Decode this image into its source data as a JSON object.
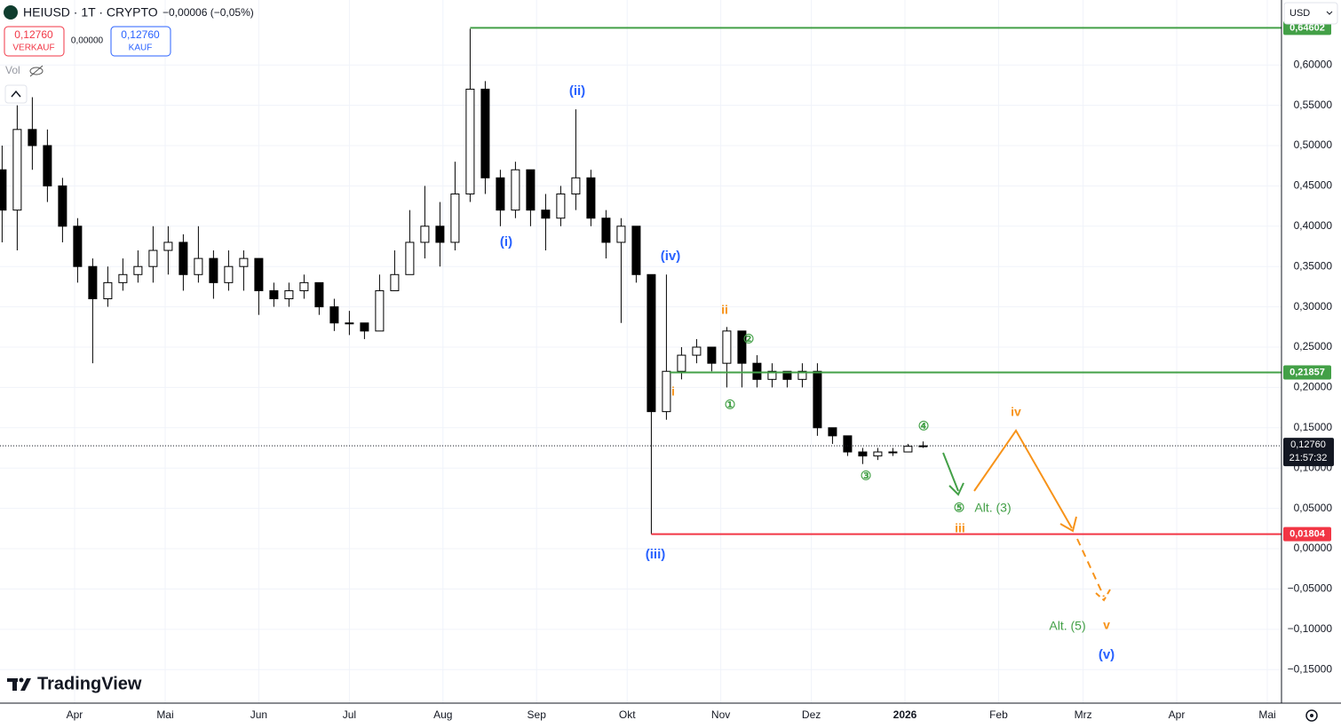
{
  "chart_data": {
    "type": "candlestick",
    "symbol": "HEIUSD · 1T · CRYPTO",
    "change": "−0,00006 (−0,05%)",
    "sell": {
      "price": "0,12760",
      "label": "VERKAUF"
    },
    "spread": "0,00000",
    "buy": {
      "price": "0,12760",
      "label": "KAUF"
    },
    "volume_label": "Vol",
    "currency": "USD",
    "brand": "TradingView",
    "xlim": [
      -24.7,
      399.7
    ],
    "ylim": [
      -0.1916,
      0.6806
    ],
    "xticks": [
      {
        "value": 0,
        "label": "Apr"
      },
      {
        "value": 30,
        "label": "Mai"
      },
      {
        "value": 61,
        "label": "Jun"
      },
      {
        "value": 91,
        "label": "Jul"
      },
      {
        "value": 122,
        "label": "Aug"
      },
      {
        "value": 153,
        "label": "Sep"
      },
      {
        "value": 183,
        "label": "Okt"
      },
      {
        "value": 214,
        "label": "Nov"
      },
      {
        "value": 244,
        "label": "Dez"
      },
      {
        "value": 275,
        "label": "2026"
      },
      {
        "value": 306,
        "label": "Feb"
      },
      {
        "value": 334,
        "label": "Mrz"
      },
      {
        "value": 365,
        "label": "Apr"
      },
      {
        "value": 395,
        "label": "Mai"
      }
    ],
    "yticks": [
      {
        "value": -0.15,
        "label": "−0,15000"
      },
      {
        "value": -0.1,
        "label": "−0,10000"
      },
      {
        "value": -0.05,
        "label": "−0,05000"
      },
      {
        "value": 0,
        "label": "0,00000"
      },
      {
        "value": 0.05,
        "label": "0,05000"
      },
      {
        "value": 0.1,
        "label": "0,10000"
      },
      {
        "value": 0.15,
        "label": "0,15000"
      },
      {
        "value": 0.2,
        "label": "0,20000"
      },
      {
        "value": 0.25,
        "label": "0,25000"
      },
      {
        "value": 0.3,
        "label": "0,30000"
      },
      {
        "value": 0.35,
        "label": "0,35000"
      },
      {
        "value": 0.4,
        "label": "0,40000"
      },
      {
        "value": 0.45,
        "label": "0,45000"
      },
      {
        "value": 0.5,
        "label": "0,50000"
      },
      {
        "value": 0.55,
        "label": "0,55000"
      },
      {
        "value": 0.6,
        "label": "0,60000"
      }
    ],
    "grid": true,
    "up_color": "#ffffff",
    "down_color": "#000000",
    "x": [
      -24,
      -19,
      -14,
      -9,
      -4,
      1,
      6,
      11,
      16,
      21,
      26,
      31,
      36,
      41,
      46,
      51,
      56,
      61,
      66,
      71,
      76,
      81,
      86,
      91,
      96,
      101,
      106,
      111,
      116,
      121,
      126,
      131,
      136,
      141,
      146,
      151,
      156,
      161,
      166,
      171,
      176,
      181,
      186,
      191,
      196,
      201,
      206,
      211,
      216,
      221,
      226,
      231,
      236,
      241,
      246,
      251,
      256,
      261,
      266,
      271,
      276,
      281
    ],
    "open": [
      0.47,
      0.42,
      0.52,
      0.5,
      0.45,
      0.4,
      0.35,
      0.31,
      0.33,
      0.34,
      0.35,
      0.37,
      0.38,
      0.34,
      0.36,
      0.33,
      0.35,
      0.36,
      0.32,
      0.31,
      0.32,
      0.33,
      0.3,
      0.28,
      0.28,
      0.27,
      0.32,
      0.34,
      0.38,
      0.4,
      0.38,
      0.44,
      0.57,
      0.46,
      0.42,
      0.47,
      0.42,
      0.41,
      0.44,
      0.46,
      0.41,
      0.38,
      0.4,
      0.34,
      0.17,
      0.22,
      0.24,
      0.25,
      0.23,
      0.27,
      0.23,
      0.21,
      0.22,
      0.21,
      0.22,
      0.15,
      0.14,
      0.12,
      0.115,
      0.12,
      0.12,
      0.127
    ],
    "high": [
      0.5,
      0.55,
      0.56,
      0.52,
      0.46,
      0.41,
      0.36,
      0.35,
      0.36,
      0.37,
      0.4,
      0.4,
      0.39,
      0.4,
      0.37,
      0.37,
      0.37,
      0.36,
      0.33,
      0.33,
      0.34,
      0.33,
      0.31,
      0.295,
      0.28,
      0.34,
      0.37,
      0.42,
      0.45,
      0.43,
      0.48,
      0.645,
      0.58,
      0.47,
      0.48,
      0.47,
      0.44,
      0.45,
      0.545,
      0.47,
      0.42,
      0.41,
      0.4,
      0.34,
      0.34,
      0.25,
      0.26,
      0.25,
      0.275,
      0.27,
      0.24,
      0.23,
      0.22,
      0.23,
      0.23,
      0.15,
      0.14,
      0.125,
      0.125,
      0.125,
      0.13,
      0.133
    ],
    "low": [
      0.38,
      0.37,
      0.47,
      0.43,
      0.38,
      0.33,
      0.23,
      0.3,
      0.32,
      0.33,
      0.33,
      0.34,
      0.32,
      0.33,
      0.31,
      0.32,
      0.32,
      0.29,
      0.3,
      0.3,
      0.31,
      0.29,
      0.27,
      0.265,
      0.26,
      0.27,
      0.32,
      0.34,
      0.36,
      0.35,
      0.37,
      0.43,
      0.44,
      0.4,
      0.41,
      0.4,
      0.37,
      0.4,
      0.42,
      0.4,
      0.36,
      0.28,
      0.33,
      0.018,
      0.16,
      0.21,
      0.23,
      0.22,
      0.2,
      0.2,
      0.2,
      0.2,
      0.2,
      0.2,
      0.14,
      0.13,
      0.115,
      0.105,
      0.11,
      0.115,
      0.12,
      0.125
    ],
    "close": [
      0.42,
      0.52,
      0.5,
      0.45,
      0.4,
      0.35,
      0.31,
      0.33,
      0.34,
      0.35,
      0.37,
      0.38,
      0.34,
      0.36,
      0.33,
      0.35,
      0.36,
      0.32,
      0.31,
      0.32,
      0.33,
      0.3,
      0.28,
      0.28,
      0.27,
      0.32,
      0.34,
      0.38,
      0.4,
      0.38,
      0.44,
      0.57,
      0.46,
      0.42,
      0.47,
      0.42,
      0.41,
      0.44,
      0.46,
      0.41,
      0.38,
      0.4,
      0.34,
      0.17,
      0.22,
      0.24,
      0.25,
      0.23,
      0.27,
      0.23,
      0.21,
      0.22,
      0.21,
      0.22,
      0.15,
      0.14,
      0.12,
      0.115,
      0.12,
      0.12,
      0.127,
      0.1276
    ],
    "levels": [
      {
        "value": 0.64602,
        "label": "0,64602",
        "start": 131,
        "color": "#43a047"
      },
      {
        "value": 0.21857,
        "label": "0,21857",
        "start": 197,
        "color": "#43a047"
      },
      {
        "value": 0.01804,
        "label": "0,01804",
        "start": 191,
        "color": "#f23645"
      }
    ],
    "last": {
      "value": 0.1276,
      "label": "0,12760",
      "countdown": "21:57:32"
    },
    "annotations": [
      {
        "text": "(i)",
        "color": "#2962ff"
      },
      {
        "text": "(ii)",
        "color": "#2962ff"
      },
      {
        "text": "(iii)",
        "color": "#2962ff"
      },
      {
        "text": "(iv)",
        "color": "#2962ff"
      },
      {
        "text": "(v)",
        "color": "#2962ff"
      },
      {
        "text": "i",
        "color": "#f7931a"
      },
      {
        "text": "ii",
        "color": "#f7931a"
      },
      {
        "text": "iii",
        "color": "#f7931a"
      },
      {
        "text": "iv",
        "color": "#f7931a"
      },
      {
        "text": "v",
        "color": "#f7931a"
      },
      {
        "text": "①",
        "color": "#43a047"
      },
      {
        "text": "②",
        "color": "#43a047"
      },
      {
        "text": "③",
        "color": "#43a047"
      },
      {
        "text": "④",
        "color": "#43a047"
      },
      {
        "text": "⑤",
        "color": "#43a047"
      },
      {
        "text": "Alt. (3)",
        "color": "#43a047"
      },
      {
        "text": "Alt. (5)",
        "color": "#43a047"
      }
    ]
  }
}
